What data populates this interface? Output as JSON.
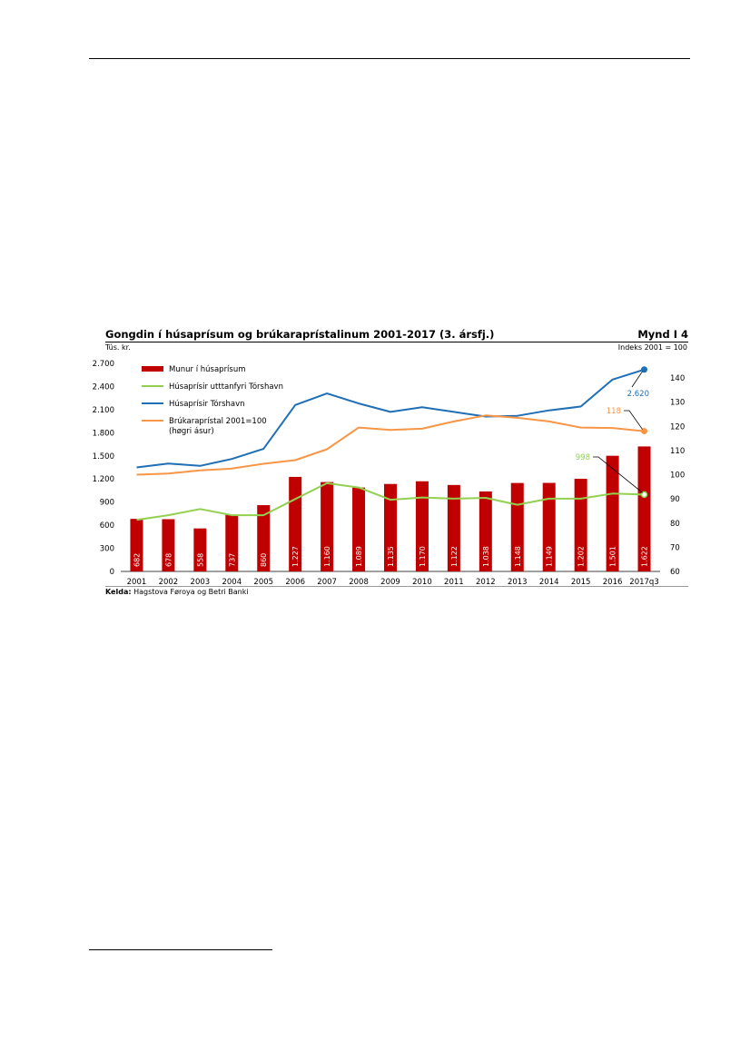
{
  "header": {
    "title": "Gongdin í húsaprísum og brúkaraprístalinum 2001-2017 (3. ársfj.)",
    "figure_id": "Mynd I 4",
    "left_unit": "Tús. kr.",
    "right_unit": "Indeks 2001 = 100"
  },
  "source": {
    "label": "Kelda:",
    "text": "Hagstova Føroya og Betri Banki"
  },
  "chart_data": {
    "type": "bar+line",
    "title": "Gongdin í húsaprísum og brúkaraprístalinum 2001-2017 (3. ársfj.)",
    "categories": [
      "2001",
      "2002",
      "2003",
      "2004",
      "2005",
      "2006",
      "2007",
      "2008",
      "2009",
      "2010",
      "2011",
      "2012",
      "2013",
      "2014",
      "2015",
      "2016",
      "2017q3"
    ],
    "left_axis": {
      "label": "Tús. kr.",
      "ylim": [
        0,
        2700
      ],
      "ticks": [
        0,
        300,
        600,
        900,
        1200,
        1500,
        1800,
        2100,
        2400,
        2700
      ],
      "tick_labels": [
        "0",
        "300",
        "600",
        "900",
        "1.200",
        "1.500",
        "1.800",
        "2.100",
        "2.400",
        "2.700"
      ]
    },
    "right_axis": {
      "label": "Indeks 2001 = 100",
      "ylim": [
        60,
        146
      ],
      "ticks": [
        60,
        70,
        80,
        90,
        100,
        110,
        120,
        130,
        140
      ],
      "tick_labels": [
        "60",
        "70",
        "80",
        "90",
        "100",
        "110",
        "120",
        "130",
        "140"
      ]
    },
    "series": [
      {
        "name": "Munur í húsaprísum",
        "kind": "bar",
        "axis": "left",
        "color": "#c00000",
        "values": [
          682,
          678,
          558,
          737,
          860,
          1227,
          1160,
          1089,
          1135,
          1170,
          1122,
          1038,
          1148,
          1149,
          1202,
          1501,
          1622
        ],
        "labels": [
          "682",
          "678",
          "558",
          "737",
          "860",
          "1.227",
          "1.160",
          "1.089",
          "1.135",
          "1.170",
          "1.122",
          "1.038",
          "1.148",
          "1.149",
          "1.202",
          "1.501",
          "1.622"
        ]
      },
      {
        "name": "Húsaprísir utttanfyri Tórshavn",
        "kind": "line",
        "axis": "left",
        "color": "#92d050",
        "values": [
          670,
          730,
          810,
          730,
          730,
          940,
          1145,
          1090,
          930,
          960,
          945,
          955,
          865,
          945,
          945,
          1010,
          998
        ],
        "end_label": "998"
      },
      {
        "name": "Húsaprísir Tórshavn",
        "kind": "line",
        "axis": "left",
        "color": "#1f6fb5",
        "values": [
          1350,
          1400,
          1370,
          1460,
          1590,
          2160,
          2310,
          2180,
          2070,
          2130,
          2070,
          2010,
          2020,
          2090,
          2140,
          2490,
          2620
        ],
        "end_label": "2.620"
      },
      {
        "name": "Brúkaraprístal 2001=100",
        "name_line2": "(høgri ásur)",
        "kind": "line",
        "axis": "right",
        "color": "#f79646",
        "values": [
          100,
          100.5,
          101.8,
          102.5,
          104.5,
          106,
          110.5,
          119.5,
          118.5,
          119,
          122,
          124.5,
          123.5,
          122,
          119.5,
          119.3,
          118
        ],
        "end_label": "118"
      }
    ]
  }
}
